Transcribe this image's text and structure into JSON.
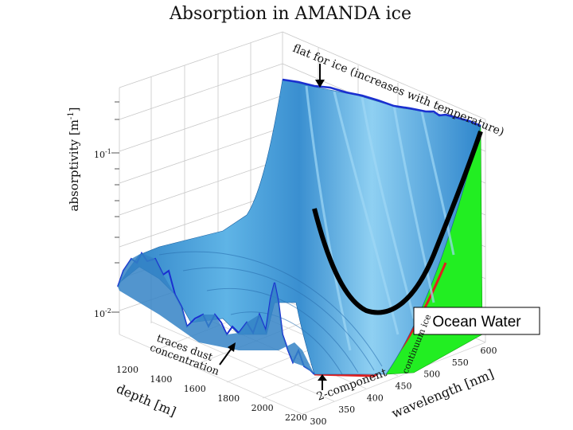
{
  "chart_data": {
    "type": "surface",
    "title": "Absorption in AMANDA ice",
    "zlabel": "absorptivity [m",
    "zlabel_sup": "-1",
    "zlabel_close": "]",
    "xlabel": "depth [m]",
    "ylabel": "wavelength [nm]",
    "z_scale": "log",
    "z_ticks": [
      "10",
      "10"
    ],
    "z_tick_exponents": [
      "-1",
      "-2"
    ],
    "z_tick_values": [
      0.1,
      0.01
    ],
    "x_ticks": [
      1200,
      1400,
      1600,
      1800,
      2000,
      2200
    ],
    "y_ticks": [
      300,
      350,
      400,
      450,
      500,
      550,
      600
    ],
    "grid": true,
    "annotations": {
      "flat": "flat for ice (increases with temperature)",
      "dust_line1": "traces dust",
      "dust_line2": "concentration",
      "two_component": "2-component",
      "continuum": "continuum ice"
    },
    "legend": {
      "label": "Ocean Water",
      "placement": "bottom-right"
    },
    "colors": {
      "surface": "#3a8fd0",
      "surface_light": "#8fd0f2",
      "outline": "#1a2fd0",
      "continuum": "#22ee22",
      "two_component": "#e02020",
      "ocean_water": "#000000"
    }
  }
}
